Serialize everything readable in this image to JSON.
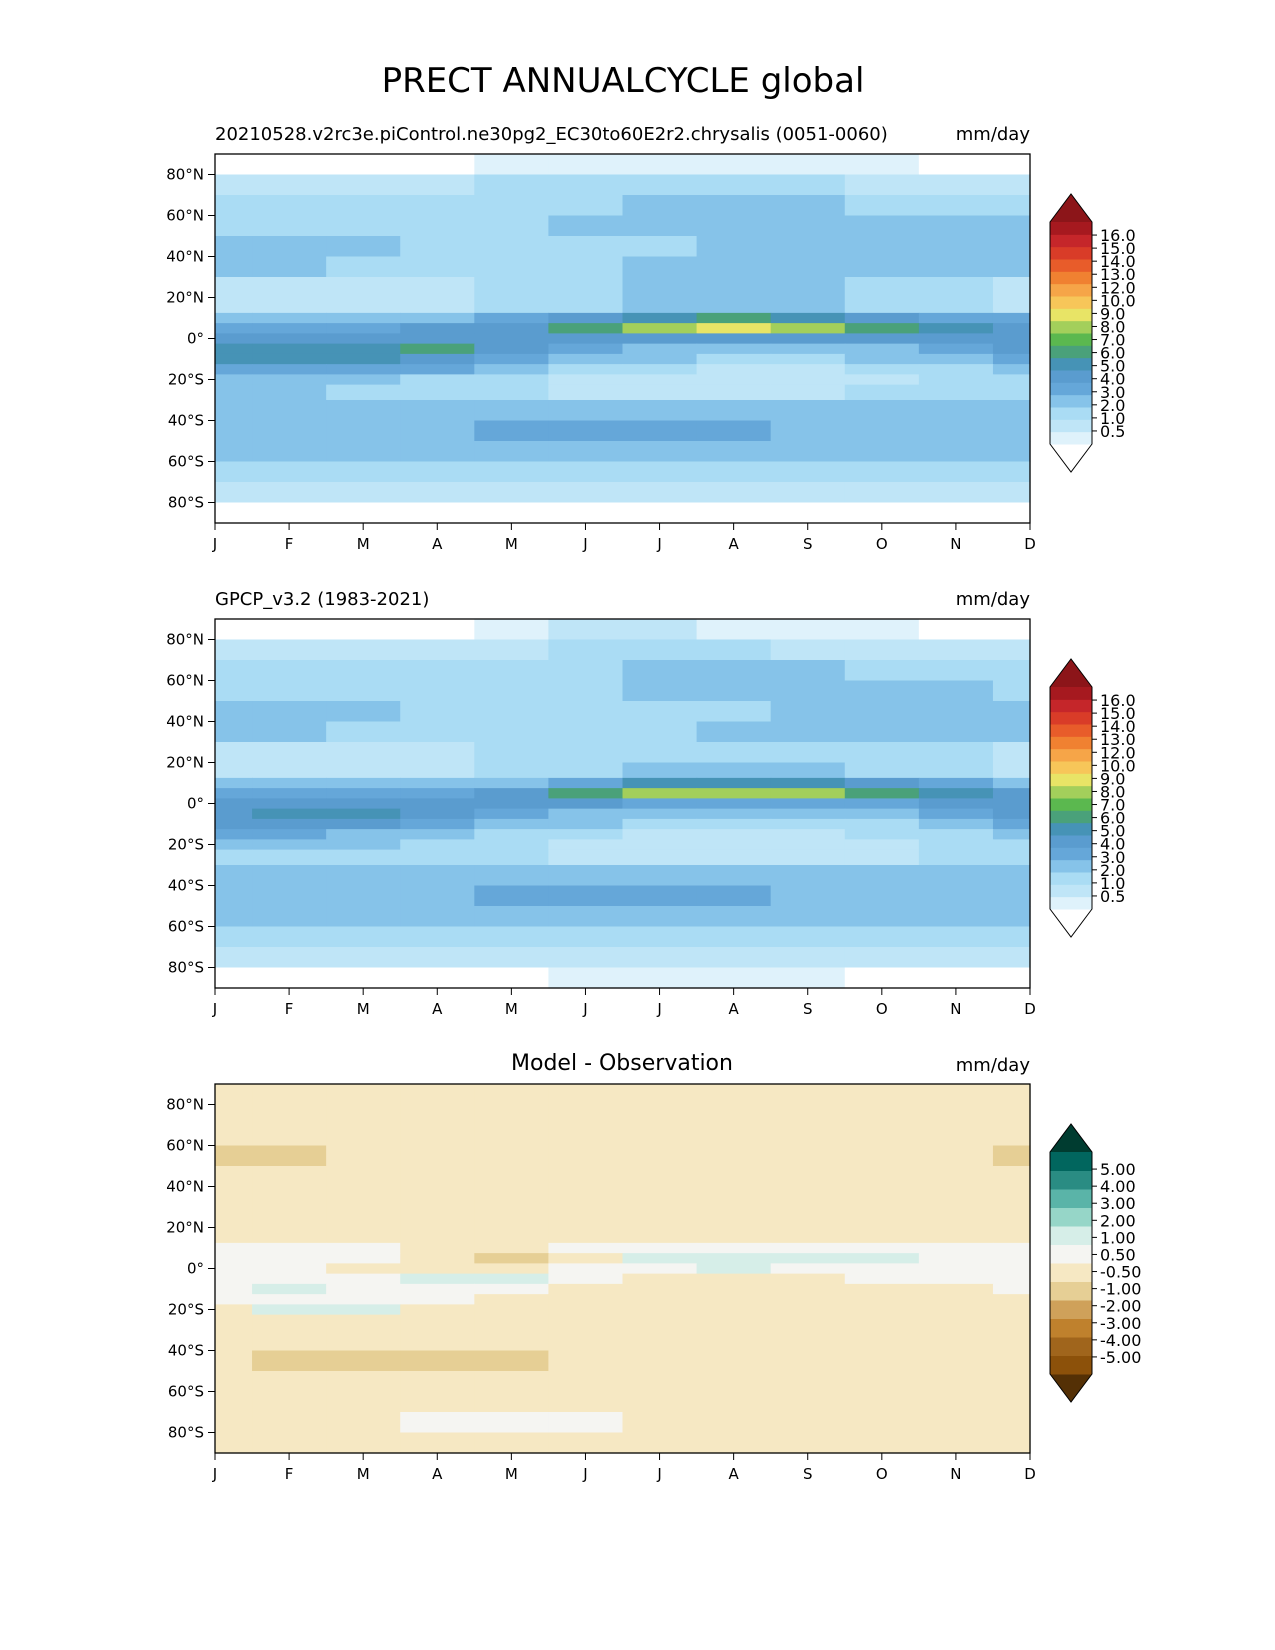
{
  "figure_title": "PRECT ANNUALCYCLE global",
  "colormaps": {
    "precip_colors": [
      "#ffffff",
      "#dff2fb",
      "#bfe5f7",
      "#aadcf4",
      "#86c3e9",
      "#65a7d9",
      "#5a9ccf",
      "#4693b6",
      "#4aa17a",
      "#5bb84f",
      "#a3cf5b",
      "#e8e466",
      "#f7c659",
      "#f6a548",
      "#f08131",
      "#e85c2a",
      "#d93c28",
      "#c5262a",
      "#a6191f",
      "#8c1519"
    ],
    "precip_cb_colors": [
      "#ffffff",
      "#dff2fb",
      "#bfe5f7",
      "#aadcf4",
      "#86c3e9",
      "#65a7d9",
      "#5a9ccf",
      "#4693b6",
      "#4aa17a",
      "#5bb84f",
      "#a3cf5b",
      "#e8e466",
      "#f7c659",
      "#f6a548",
      "#f08131",
      "#e85c2a",
      "#d93c28",
      "#c5262a",
      "#a6191f",
      "#8c1519"
    ],
    "diff_cb_colors": [
      "#543005",
      "#8c510a",
      "#a0651c",
      "#bf812d",
      "#cfa15a",
      "#e6cf95",
      "#f6e8c3",
      "#f5f5f2",
      "#d6eee8",
      "#96d6c8",
      "#5ab4a8",
      "#2a8c83",
      "#01665e",
      "#003c30"
    ]
  },
  "panels": [
    {
      "id": "model",
      "title_left": "20210528.v2rc3e.piControl.ne30pg2_EC30to60E2r2.chrysalis (0051-0060)",
      "title_center": "",
      "units": "mm/day",
      "colorbar": {
        "levels": [
          "16.0",
          "15.0",
          "14.0",
          "13.0",
          "12.0",
          "10.0",
          "9.0",
          "8.0",
          "7.0",
          "6.0",
          "5.0",
          "4.0",
          "3.0",
          "2.0",
          "1.0",
          "0.5"
        ],
        "colors_key": "precip_cb_colors"
      }
    },
    {
      "id": "obs",
      "title_left": "GPCP_v3.2 (1983-2021)",
      "title_center": "",
      "units": "mm/day",
      "colorbar": {
        "levels": [
          "16.0",
          "15.0",
          "14.0",
          "13.0",
          "12.0",
          "10.0",
          "9.0",
          "8.0",
          "7.0",
          "6.0",
          "5.0",
          "4.0",
          "3.0",
          "2.0",
          "1.0",
          "0.5"
        ],
        "colors_key": "precip_cb_colors"
      }
    },
    {
      "id": "diff",
      "title_left": "",
      "title_center": "Model - Observation",
      "units": "mm/day",
      "colorbar": {
        "levels": [
          "5.00",
          "4.00",
          "3.00",
          "2.00",
          "1.00",
          "0.50",
          "-0.50",
          "-1.00",
          "-2.00",
          "-3.00",
          "-4.00",
          "-5.00"
        ],
        "colors_key": "diff_cb_colors"
      }
    }
  ],
  "chart_data": [
    {
      "type": "heatmap",
      "title": "20210528.v2rc3e.piControl.ne30pg2_EC30to60E2r2.chrysalis (0051-0060)",
      "units": "mm/day",
      "x_tick_labels": [
        "J",
        "F",
        "M",
        "A",
        "M",
        "J",
        "J",
        "A",
        "S",
        "O",
        "N",
        "D"
      ],
      "y_tick_labels": [
        "80°N",
        "60°N",
        "40°N",
        "20°N",
        "0°",
        "20°S",
        "40°S",
        "60°S",
        "80°S"
      ],
      "x_range": [
        1,
        12
      ],
      "y_range": [
        90,
        -90
      ],
      "contour_levels": [
        0.5,
        1,
        2,
        3,
        4,
        5,
        6,
        7,
        8,
        9,
        10,
        12,
        13,
        14,
        15,
        16
      ],
      "x": [
        1,
        2,
        3,
        4,
        5,
        6,
        7,
        8,
        9,
        10,
        11,
        12
      ],
      "y": [
        85,
        75,
        65,
        55,
        45,
        35,
        25,
        15,
        10,
        5,
        0,
        -5,
        -10,
        -15,
        -20,
        -25,
        -35,
        -45,
        -55,
        -65,
        -75,
        -85
      ],
      "z": [
        [
          0.3,
          0.3,
          0.3,
          0.4,
          0.6,
          0.8,
          0.9,
          0.7,
          0.5,
          0.5,
          0.3,
          0.3
        ],
        [
          1.6,
          1.5,
          1.6,
          1.8,
          2.0,
          2.2,
          2.4,
          2.3,
          2.0,
          1.9,
          1.8,
          1.7
        ],
        [
          2.6,
          2.5,
          2.4,
          2.4,
          2.6,
          2.9,
          3.2,
          3.3,
          3.1,
          2.9,
          2.8,
          2.6
        ],
        [
          2.8,
          2.6,
          2.5,
          2.4,
          2.5,
          3.0,
          3.3,
          3.4,
          3.4,
          3.4,
          3.2,
          3.0
        ],
        [
          3.8,
          3.6,
          3.2,
          2.9,
          2.6,
          2.7,
          2.9,
          3.0,
          3.2,
          3.6,
          3.8,
          3.9
        ],
        [
          3.4,
          3.2,
          2.9,
          2.7,
          2.6,
          2.8,
          3.0,
          3.1,
          3.2,
          3.4,
          3.6,
          3.5
        ],
        [
          1.8,
          1.6,
          1.6,
          1.8,
          2.2,
          2.6,
          3.0,
          3.1,
          3.0,
          2.6,
          2.1,
          1.9
        ],
        [
          1.6,
          1.4,
          1.5,
          1.7,
          2.0,
          2.7,
          3.4,
          3.6,
          3.3,
          2.8,
          2.2,
          1.8
        ],
        [
          3.6,
          3.4,
          3.4,
          3.6,
          4.0,
          5.2,
          6.6,
          7.0,
          6.4,
          5.6,
          4.8,
          4.0
        ],
        [
          4.8,
          4.6,
          4.8,
          5.0,
          5.8,
          7.6,
          9.5,
          10.8,
          9.6,
          7.6,
          6.2,
          5.4
        ],
        [
          5.6,
          5.4,
          5.6,
          5.6,
          5.4,
          5.2,
          5.0,
          5.0,
          5.1,
          5.2,
          5.4,
          5.6
        ],
        [
          6.6,
          6.8,
          6.6,
          7.0,
          5.6,
          4.2,
          3.6,
          3.4,
          3.6,
          3.9,
          4.6,
          5.6
        ],
        [
          6.2,
          6.6,
          6.2,
          5.6,
          4.4,
          3.4,
          3.0,
          2.8,
          2.9,
          3.0,
          3.6,
          4.8
        ],
        [
          4.8,
          4.9,
          4.6,
          4.0,
          3.2,
          2.4,
          2.0,
          1.8,
          1.9,
          2.1,
          2.8,
          3.6
        ],
        [
          3.6,
          3.6,
          3.3,
          2.9,
          2.2,
          1.5,
          1.3,
          1.1,
          1.3,
          1.6,
          2.2,
          2.9
        ],
        [
          3.0,
          3.0,
          2.8,
          2.6,
          2.2,
          1.8,
          1.7,
          1.7,
          1.8,
          2.0,
          2.4,
          2.7
        ],
        [
          3.0,
          3.1,
          3.2,
          3.4,
          3.6,
          3.8,
          3.9,
          3.9,
          3.8,
          3.6,
          3.3,
          3.1
        ],
        [
          3.4,
          3.5,
          3.6,
          3.7,
          4.2,
          4.5,
          4.4,
          4.0,
          3.9,
          3.8,
          3.6,
          3.5
        ],
        [
          3.6,
          3.7,
          3.8,
          3.9,
          3.9,
          3.8,
          3.7,
          3.6,
          3.6,
          3.6,
          3.6,
          3.6
        ],
        [
          2.4,
          2.5,
          2.6,
          2.6,
          2.6,
          2.6,
          2.6,
          2.6,
          2.6,
          2.6,
          2.5,
          2.4
        ],
        [
          1.2,
          1.2,
          1.2,
          1.2,
          1.3,
          1.3,
          1.4,
          1.4,
          1.3,
          1.3,
          1.3,
          1.2
        ],
        [
          0.3,
          0.3,
          0.3,
          0.3,
          0.3,
          0.3,
          0.3,
          0.3,
          0.3,
          0.3,
          0.3,
          0.3
        ]
      ]
    },
    {
      "type": "heatmap",
      "title": "GPCP_v3.2 (1983-2021)",
      "units": "mm/day",
      "x_tick_labels": [
        "J",
        "F",
        "M",
        "A",
        "M",
        "J",
        "J",
        "A",
        "S",
        "O",
        "N",
        "D"
      ],
      "y_tick_labels": [
        "80°N",
        "60°N",
        "40°N",
        "20°N",
        "0°",
        "20°S",
        "40°S",
        "60°S",
        "80°S"
      ],
      "x_range": [
        1,
        12
      ],
      "y_range": [
        90,
        -90
      ],
      "contour_levels": [
        0.5,
        1,
        2,
        3,
        4,
        5,
        6,
        7,
        8,
        9,
        10,
        12,
        13,
        14,
        15,
        16
      ],
      "x": [
        1,
        2,
        3,
        4,
        5,
        6,
        7,
        8,
        9,
        10,
        11,
        12
      ],
      "y": [
        85,
        75,
        65,
        55,
        45,
        35,
        25,
        15,
        10,
        5,
        0,
        -5,
        -10,
        -15,
        -20,
        -25,
        -35,
        -45,
        -55,
        -65,
        -75,
        -85
      ],
      "z": [
        [
          0.3,
          0.3,
          0.3,
          0.4,
          0.7,
          1.0,
          1.3,
          0.9,
          0.6,
          0.5,
          0.4,
          0.3
        ],
        [
          1.4,
          1.4,
          1.5,
          1.7,
          1.9,
          2.1,
          2.2,
          2.1,
          1.9,
          1.8,
          1.6,
          1.5
        ],
        [
          2.6,
          2.5,
          2.4,
          2.4,
          2.6,
          2.9,
          3.1,
          3.2,
          3.1,
          2.9,
          2.8,
          2.6
        ],
        [
          2.6,
          2.4,
          2.4,
          2.4,
          2.5,
          2.8,
          3.0,
          3.1,
          3.1,
          3.3,
          3.3,
          2.9
        ],
        [
          3.5,
          3.4,
          3.2,
          2.9,
          2.6,
          2.6,
          2.8,
          2.9,
          3.0,
          3.5,
          3.7,
          3.6
        ],
        [
          3.2,
          3.0,
          2.8,
          2.6,
          2.6,
          2.8,
          2.9,
          3.0,
          3.1,
          3.2,
          3.3,
          3.3
        ],
        [
          1.8,
          1.7,
          1.7,
          1.8,
          2.1,
          2.5,
          2.8,
          2.8,
          2.7,
          2.5,
          2.1,
          1.9
        ],
        [
          1.5,
          1.4,
          1.5,
          1.7,
          2.0,
          2.5,
          3.0,
          3.3,
          3.1,
          2.6,
          2.0,
          1.7
        ],
        [
          3.4,
          3.2,
          3.3,
          3.5,
          3.8,
          4.8,
          6.2,
          6.8,
          6.2,
          5.4,
          4.5,
          3.8
        ],
        [
          4.4,
          4.2,
          4.4,
          4.8,
          5.8,
          7.6,
          9.2,
          9.8,
          9.0,
          7.6,
          6.0,
          5.0
        ],
        [
          5.2,
          5.0,
          5.2,
          5.5,
          5.4,
          5.0,
          4.6,
          4.5,
          4.6,
          4.8,
          5.0,
          5.2
        ],
        [
          5.8,
          6.0,
          6.0,
          5.8,
          4.6,
          3.8,
          3.4,
          3.2,
          3.3,
          3.5,
          4.2,
          5.0
        ],
        [
          5.4,
          5.6,
          5.4,
          4.8,
          3.8,
          3.0,
          2.7,
          2.6,
          2.6,
          2.8,
          3.4,
          4.4
        ],
        [
          4.0,
          4.1,
          3.9,
          3.5,
          2.8,
          2.1,
          1.7,
          1.6,
          1.7,
          2.0,
          2.5,
          3.2
        ],
        [
          3.2,
          3.2,
          3.0,
          2.7,
          2.1,
          1.5,
          1.2,
          1.0,
          1.2,
          1.5,
          2.0,
          2.6
        ],
        [
          2.9,
          2.9,
          2.8,
          2.6,
          2.2,
          1.8,
          1.6,
          1.6,
          1.7,
          1.9,
          2.3,
          2.6
        ],
        [
          3.0,
          3.1,
          3.2,
          3.3,
          3.6,
          3.8,
          3.9,
          3.9,
          3.8,
          3.6,
          3.3,
          3.1
        ],
        [
          3.4,
          3.5,
          3.6,
          3.7,
          4.2,
          4.6,
          4.5,
          4.1,
          3.9,
          3.8,
          3.6,
          3.5
        ],
        [
          3.4,
          3.5,
          3.6,
          3.7,
          3.7,
          3.7,
          3.6,
          3.5,
          3.5,
          3.5,
          3.5,
          3.4
        ],
        [
          2.3,
          2.4,
          2.5,
          2.5,
          2.5,
          2.5,
          2.5,
          2.5,
          2.5,
          2.5,
          2.4,
          2.3
        ],
        [
          1.2,
          1.2,
          1.2,
          1.2,
          1.2,
          1.3,
          1.3,
          1.3,
          1.3,
          1.3,
          1.3,
          1.2
        ],
        [
          0.3,
          0.3,
          0.3,
          0.3,
          0.3,
          0.5,
          0.7,
          0.8,
          0.5,
          0.3,
          0.3,
          0.3
        ]
      ]
    },
    {
      "type": "heatmap",
      "title": "Model - Observation",
      "units": "mm/day",
      "x_tick_labels": [
        "J",
        "F",
        "M",
        "A",
        "M",
        "J",
        "J",
        "A",
        "S",
        "O",
        "N",
        "D"
      ],
      "y_tick_labels": [
        "80°N",
        "60°N",
        "40°N",
        "20°N",
        "0°",
        "20°S",
        "40°S",
        "60°S",
        "80°S"
      ],
      "x_range": [
        1,
        12
      ],
      "y_range": [
        90,
        -90
      ],
      "contour_levels": [
        -5,
        -4,
        -3,
        -2,
        -1,
        -0.5,
        0.5,
        1,
        2,
        3,
        4,
        5
      ],
      "x": [
        1,
        2,
        3,
        4,
        5,
        6,
        7,
        8,
        9,
        10,
        11,
        12
      ],
      "y": [
        85,
        75,
        65,
        55,
        45,
        35,
        25,
        15,
        10,
        5,
        0,
        -5,
        -10,
        -15,
        -20,
        -25,
        -35,
        -45,
        -55,
        -65,
        -75,
        -85
      ],
      "z": [
        [
          0,
          0,
          0,
          0,
          0,
          0,
          0,
          0,
          0,
          0,
          0,
          0
        ],
        [
          0,
          0,
          0,
          0,
          0,
          0,
          0,
          0,
          0,
          0,
          0,
          0
        ],
        [
          0,
          0,
          0,
          0,
          0,
          0,
          0,
          0,
          0,
          0,
          0,
          0
        ],
        [
          -0.6,
          -0.6,
          0,
          0,
          0,
          0,
          0,
          0,
          0,
          0,
          0,
          -0.6
        ],
        [
          0,
          0,
          0,
          0,
          0,
          0,
          0,
          0,
          0,
          0,
          0,
          0
        ],
        [
          0,
          0,
          0,
          0,
          0,
          0,
          0,
          0,
          0,
          0,
          0,
          0
        ],
        [
          0,
          0,
          0,
          0,
          0,
          0,
          0,
          0,
          0,
          0,
          0,
          0
        ],
        [
          0,
          0,
          0,
          0,
          0,
          0,
          0,
          0,
          0,
          0,
          0,
          0
        ],
        [
          0.7,
          0.6,
          0.5,
          0.2,
          0.3,
          0.6,
          0.8,
          0.8,
          0.9,
          0.9,
          0.8,
          0.7
        ],
        [
          0.8,
          0.6,
          0.6,
          0.4,
          -0.6,
          0.3,
          1.1,
          1.2,
          1.2,
          1.1,
          0.9,
          0.8
        ],
        [
          0.6,
          0.5,
          0.4,
          0.3,
          0.2,
          0.5,
          0.9,
          1.0,
          0.8,
          0.5,
          0.5,
          0.6
        ],
        [
          0.8,
          0.8,
          0.6,
          1.2,
          1.3,
          0.7,
          0.4,
          0.3,
          0.4,
          0.6,
          0.6,
          0.8
        ],
        [
          0.8,
          1.0,
          0.9,
          0.9,
          0.7,
          0.4,
          0.3,
          0.2,
          0.3,
          0.2,
          0.3,
          0.6
        ],
        [
          0.6,
          0.8,
          0.7,
          0.5,
          0.3,
          0.2,
          0.2,
          0.1,
          0.2,
          0.1,
          0.2,
          0.3
        ],
        [
          0.4,
          1.2,
          1.1,
          0.3,
          0.2,
          0,
          0,
          0,
          0,
          0,
          0,
          0
        ],
        [
          0.3,
          0.2,
          0.2,
          0,
          0,
          0,
          0,
          0,
          0,
          0,
          0,
          0
        ],
        [
          0,
          0,
          0,
          0,
          0,
          0,
          0,
          0,
          0,
          0,
          0,
          0
        ],
        [
          0,
          -0.6,
          -0.7,
          -0.7,
          -0.6,
          0,
          0,
          0,
          0,
          0,
          0,
          0
        ],
        [
          0,
          0,
          0,
          0,
          0,
          0,
          0,
          0,
          0,
          0,
          0,
          0
        ],
        [
          0,
          0,
          0,
          0,
          0,
          0,
          0,
          0,
          0,
          0,
          0,
          0
        ],
        [
          0,
          0,
          0,
          0.6,
          0.6,
          0.5,
          0,
          0,
          0,
          0,
          0,
          0
        ],
        [
          0,
          0,
          0,
          0,
          0,
          0,
          0,
          0,
          0,
          0,
          0,
          0
        ]
      ]
    }
  ]
}
